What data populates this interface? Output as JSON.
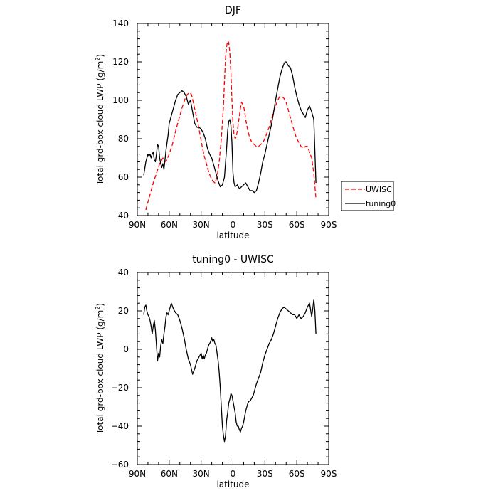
{
  "chart_data": [
    {
      "type": "line",
      "title": "DJF",
      "xlabel": "latitude",
      "ylabel": "Total grd-box cloud LWP",
      "ylabel_unit_base": "(g/m",
      "ylabel_unit_exp": "2",
      "ylabel_unit_close": ")",
      "x_ticks": [
        "90N",
        "60N",
        "30N",
        "0",
        "30S",
        "60S",
        "90S"
      ],
      "xlim": [
        -90,
        90
      ],
      "y_ticks": [
        40,
        60,
        80,
        100,
        120,
        140
      ],
      "ylim": [
        40,
        140
      ],
      "legend_position": "right",
      "series": [
        {
          "name": "UWISC",
          "color": "#ff0000",
          "dash": "dashed",
          "x": [
            -82,
            -80,
            -78,
            -75,
            -72,
            -69,
            -66,
            -63,
            -60,
            -57,
            -54,
            -51,
            -48,
            -45,
            -43,
            -41,
            -39,
            -37,
            -35,
            -33,
            -31,
            -29,
            -27,
            -25,
            -23,
            -21,
            -19,
            -17,
            -15,
            -13,
            -11,
            -9,
            -8,
            -7,
            -6,
            -5,
            -4,
            -3,
            -2,
            -1,
            0,
            1,
            2,
            3,
            4,
            5,
            6,
            7,
            8,
            9,
            10,
            11,
            12,
            14,
            16,
            18,
            20,
            22,
            24,
            26,
            28,
            30,
            32,
            34,
            36,
            38,
            40,
            42,
            44,
            46,
            48,
            50,
            52,
            54,
            56,
            58,
            60,
            62,
            64,
            66,
            68,
            70,
            72,
            74,
            76,
            78
          ],
          "y": [
            43,
            47,
            51,
            57,
            62,
            67,
            70,
            68,
            72,
            77,
            84,
            90,
            96,
            101,
            103,
            104,
            103,
            98,
            93,
            88,
            82,
            76,
            71,
            67,
            63,
            60,
            58,
            57,
            60,
            68,
            80,
            97,
            110,
            122,
            128,
            131,
            130,
            125,
            115,
            100,
            88,
            82,
            80,
            81,
            84,
            88,
            92,
            96,
            99,
            98,
            97,
            94,
            90,
            84,
            80,
            78,
            77,
            76,
            76,
            77,
            78,
            80,
            83,
            86,
            90,
            94,
            97,
            100,
            102,
            102,
            101,
            99,
            95,
            91,
            87,
            83,
            80,
            78,
            76,
            75,
            76,
            76,
            73,
            70,
            62,
            49
          ]
        },
        {
          "name": "tuning0",
          "color": "#000000",
          "dash": "solid",
          "x": [
            -84,
            -82,
            -80,
            -79,
            -78,
            -77,
            -76,
            -75,
            -74,
            -73,
            -72,
            -71,
            -70,
            -69,
            -68,
            -67,
            -66,
            -65,
            -64,
            -63,
            -62,
            -61,
            -60,
            -58,
            -56,
            -54,
            -52,
            -50,
            -48,
            -46,
            -44,
            -42,
            -40,
            -38,
            -36,
            -34,
            -32,
            -30,
            -28,
            -26,
            -24,
            -22,
            -20,
            -18,
            -16,
            -14,
            -12,
            -10,
            -8,
            -6,
            -5,
            -4,
            -3,
            -2,
            -1,
            0,
            1,
            2,
            4,
            6,
            8,
            10,
            12,
            14,
            16,
            18,
            20,
            22,
            24,
            26,
            28,
            30,
            32,
            34,
            36,
            38,
            40,
            42,
            44,
            46,
            48,
            49,
            50,
            51,
            52,
            54,
            56,
            58,
            60,
            62,
            64,
            66,
            68,
            70,
            72,
            74,
            76,
            78
          ],
          "y": [
            61,
            68,
            72,
            71,
            72,
            70,
            72,
            73,
            69,
            68,
            72,
            77,
            76,
            70,
            67,
            65,
            67,
            64,
            69,
            74,
            78,
            82,
            88,
            92,
            96,
            100,
            103,
            104,
            105,
            104,
            102,
            98,
            100,
            94,
            88,
            86,
            86,
            85,
            83,
            80,
            75,
            72,
            70,
            66,
            62,
            58,
            55,
            56,
            60,
            75,
            84,
            89,
            90,
            87,
            78,
            62,
            57,
            55,
            56,
            54,
            55,
            56,
            57,
            55,
            53,
            53,
            52,
            53,
            57,
            62,
            68,
            72,
            77,
            82,
            87,
            93,
            100,
            106,
            112,
            116,
            119,
            120,
            120,
            119,
            118,
            117,
            113,
            107,
            102,
            98,
            95,
            93,
            91,
            95,
            97,
            94,
            90,
            57
          ]
        }
      ]
    },
    {
      "type": "line",
      "title": "tuning0 - UWISC",
      "xlabel": "latitude",
      "ylabel": "Total grd-box cloud LWP",
      "ylabel_unit_base": "(g/m",
      "ylabel_unit_exp": "2",
      "ylabel_unit_close": ")",
      "x_ticks": [
        "90N",
        "60N",
        "30N",
        "0",
        "30S",
        "60S",
        "90S"
      ],
      "xlim": [
        -90,
        90
      ],
      "y_ticks": [
        -60,
        -40,
        -20,
        0,
        20,
        40
      ],
      "ylim": [
        -60,
        40
      ],
      "series": [
        {
          "color": "#000000",
          "dash": "solid",
          "x": [
            -84,
            -83,
            -82,
            -81,
            -80,
            -79,
            -78,
            -77,
            -76,
            -75,
            -74,
            -73,
            -72,
            -71,
            -70,
            -69,
            -68,
            -67,
            -66,
            -65,
            -64,
            -63,
            -62,
            -61,
            -60,
            -58,
            -56,
            -54,
            -52,
            -50,
            -48,
            -46,
            -44,
            -42,
            -40,
            -38,
            -36,
            -34,
            -32,
            -30,
            -29,
            -28,
            -27,
            -26,
            -25,
            -24,
            -23,
            -22,
            -21,
            -20,
            -19,
            -18,
            -17,
            -16,
            -15,
            -14,
            -13,
            -12,
            -11,
            -10,
            -9,
            -8,
            -7,
            -6,
            -5,
            -4,
            -3,
            -2,
            -1,
            0,
            1,
            2,
            3,
            4,
            5,
            6,
            7,
            8,
            9,
            10,
            11,
            12,
            13,
            14,
            15,
            16,
            17,
            18,
            19,
            20,
            21,
            22,
            24,
            26,
            28,
            30,
            32,
            34,
            36,
            38,
            40,
            42,
            44,
            46,
            48,
            50,
            52,
            54,
            56,
            58,
            60,
            62,
            64,
            66,
            68,
            70,
            72,
            74,
            75,
            76,
            77,
            78
          ],
          "y": [
            18,
            22,
            23,
            20,
            18,
            17,
            15,
            12,
            8,
            12,
            15,
            10,
            2,
            -6,
            -2,
            -4,
            2,
            5,
            3,
            8,
            12,
            17,
            19,
            18,
            20,
            24,
            21,
            19,
            18,
            15,
            11,
            6,
            0,
            -5,
            -8,
            -13,
            -10,
            -6,
            -4,
            -2,
            -5,
            -3,
            -5,
            -3,
            -2,
            0,
            2,
            3,
            4,
            6,
            4,
            5,
            3,
            2,
            -2,
            -6,
            -12,
            -20,
            -30,
            -40,
            -45,
            -48,
            -45,
            -37,
            -33,
            -28,
            -26,
            -23,
            -24,
            -27,
            -30,
            -33,
            -38,
            -40,
            -40,
            -42,
            -43,
            -41,
            -40,
            -38,
            -35,
            -32,
            -30,
            -28,
            -27,
            -27,
            -26,
            -25,
            -24,
            -22,
            -20,
            -18,
            -15,
            -12,
            -7,
            -3,
            0,
            3,
            5,
            8,
            12,
            16,
            19,
            21,
            22,
            21,
            20,
            19,
            18,
            18,
            16,
            18,
            16,
            17,
            19,
            22,
            24,
            17,
            21,
            26,
            20,
            8
          ]
        }
      ]
    }
  ]
}
